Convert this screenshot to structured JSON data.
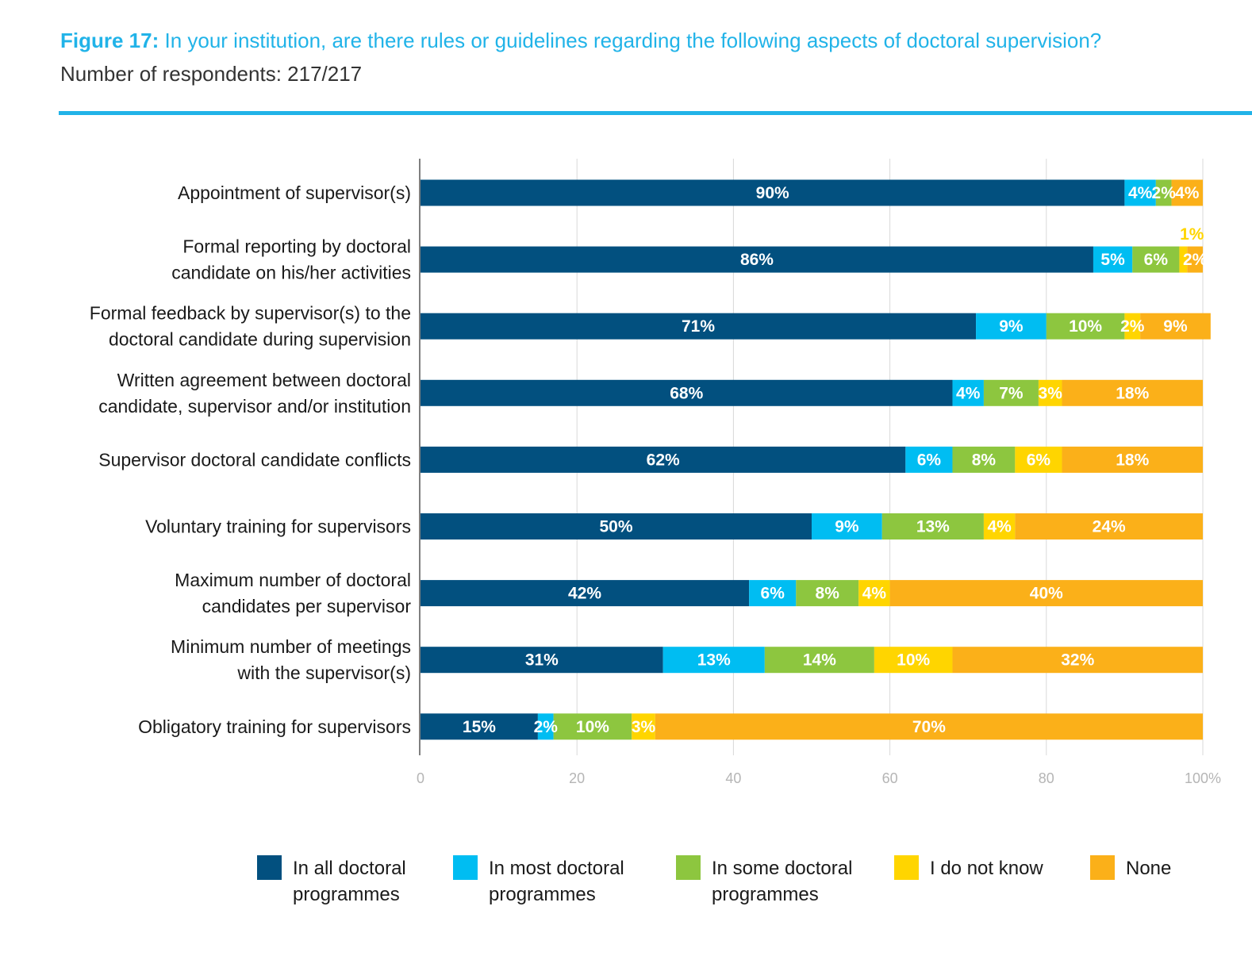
{
  "header": {
    "figure_label": "Figure 17:",
    "title": " In your institution, are there rules or guidelines regarding the following aspects of doctoral supervision?",
    "subtitle": "Number of respondents: 217/217"
  },
  "colors": {
    "title": "#21b3e8",
    "rule": "#21b3e8",
    "axis": "#555555",
    "grid": "#d9d9d9"
  },
  "chart_data": {
    "type": "bar",
    "orientation": "horizontal",
    "stacked": true,
    "title": "In your institution, are there rules or guidelines regarding the following aspects of doctoral supervision?",
    "categories": [
      "Appointment of supervisor(s)",
      "Formal reporting by doctoral\ncandidate on his/her activities",
      "Formal feedback by supervisor(s) to the\ndoctoral candidate during supervision",
      "Written agreement between doctoral\ncandidate, supervisor and/or institution",
      "Supervisor doctoral candidate conflicts",
      "Voluntary training for supervisors",
      "Maximum number of doctoral\ncandidates per supervisor",
      "Minimum number of meetings\nwith the supervisor(s)",
      "Obligatory training for supervisors"
    ],
    "series": [
      {
        "name": "In all doctoral\nprogrammes",
        "color": "#02507f",
        "values": [
          90,
          86,
          71,
          68,
          62,
          50,
          42,
          31,
          15
        ]
      },
      {
        "name": "In most doctoral\nprogrammes",
        "color": "#00bdf2",
        "values": [
          4,
          5,
          9,
          4,
          6,
          9,
          6,
          13,
          2
        ]
      },
      {
        "name": "In some doctoral\nprogrammes",
        "color": "#8dc63f",
        "values": [
          2,
          6,
          10,
          7,
          8,
          13,
          8,
          14,
          10
        ]
      },
      {
        "name": "I do not know",
        "color": "#ffd500",
        "values": [
          0,
          1,
          2,
          3,
          6,
          4,
          4,
          10,
          3
        ]
      },
      {
        "name": "None",
        "color": "#fbb019",
        "values": [
          4,
          2,
          9,
          18,
          18,
          24,
          40,
          32,
          70
        ]
      }
    ],
    "xlim": [
      0,
      100
    ],
    "x_ticks": [
      "0",
      "20",
      "40",
      "60",
      "80",
      "100%"
    ],
    "grid": true,
    "legend_position": "bottom"
  }
}
